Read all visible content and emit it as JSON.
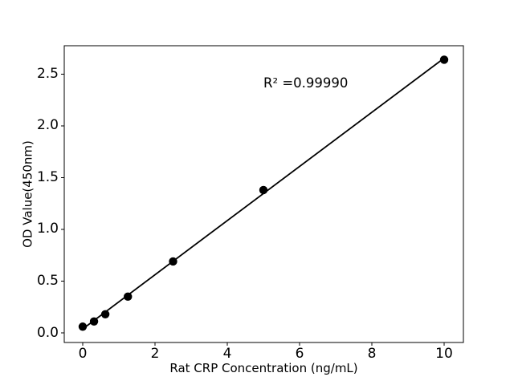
{
  "chart_data": {
    "type": "scatter",
    "title": "",
    "xlabel": "Rat CRP Concentration (ng/mL)",
    "ylabel": "OD Value(450nm)",
    "annotation": {
      "text": "R² =0.99990",
      "x": 5.0,
      "y": 2.36
    },
    "points": {
      "x": [
        0,
        0.3125,
        0.625,
        1.25,
        2.5,
        5,
        10
      ],
      "y": [
        0.06,
        0.11,
        0.18,
        0.35,
        0.69,
        1.38,
        2.64
      ]
    },
    "trendline": {
      "x": [
        0,
        10
      ],
      "y": [
        0.038,
        2.655
      ],
      "r_squared": "0.99990"
    },
    "xticks": {
      "values": [
        0,
        2,
        4,
        6,
        8,
        10
      ],
      "labels": [
        "0",
        "2",
        "4",
        "6",
        "8",
        "10"
      ]
    },
    "yticks": {
      "values": [
        0,
        0.5,
        1.0,
        1.5,
        2.0,
        2.5
      ],
      "labels": [
        "0.0",
        "0.5",
        "1.0",
        "1.5",
        "2.0",
        "2.5"
      ]
    },
    "xlim": [
      -0.511,
      10.533
    ],
    "ylim": [
      -0.093,
      2.775
    ],
    "grid": false,
    "legend": null,
    "colors": {
      "points": "#000000",
      "line": "#000000",
      "text": "#000000",
      "spine": "#000000",
      "background": "#ffffff"
    }
  }
}
